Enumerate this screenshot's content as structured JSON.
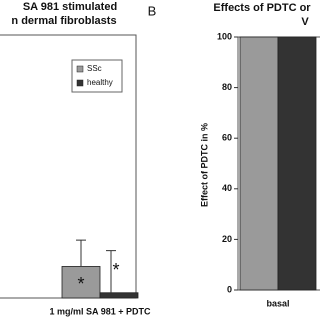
{
  "chart_data": [
    {
      "type": "bar",
      "title": [
        "SA 981 stimulated",
        "n dermal fibroblasts"
      ],
      "categories": [
        "1 mg/ml SA 981 + PDTC"
      ],
      "series": [
        {
          "name": "SSc",
          "color": "#9a9a9a",
          "values": [
            12
          ],
          "errors": [
            10
          ]
        },
        {
          "name": "healthy",
          "color": "#333333",
          "values": [
            2
          ],
          "errors": [
            16
          ]
        }
      ],
      "annotations": [
        "*",
        "*"
      ],
      "ylim": [
        0,
        100
      ]
    },
    {
      "type": "bar",
      "panel": "B",
      "title": [
        "Effects of PDTC or",
        "V"
      ],
      "ylabel": "Effect of PDTC in %",
      "categories": [
        "basal"
      ],
      "series": [
        {
          "color": "#9a9a9a",
          "values": [
            100
          ]
        },
        {
          "color": "#333333",
          "values": [
            100
          ]
        }
      ],
      "ylim": [
        0,
        100
      ],
      "yticks": [
        0,
        20,
        40,
        60,
        80,
        100
      ]
    }
  ]
}
